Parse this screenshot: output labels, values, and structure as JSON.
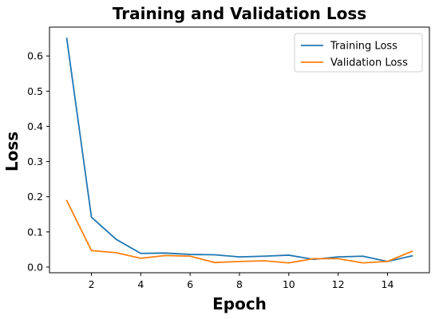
{
  "chart_data": {
    "type": "line",
    "title": "Training and Validation Loss",
    "xlabel": "Epoch",
    "ylabel": "Loss",
    "x": [
      1,
      2,
      3,
      4,
      5,
      6,
      7,
      8,
      9,
      10,
      11,
      12,
      13,
      14,
      15
    ],
    "xlim": [
      0.3,
      15.7
    ],
    "ylim": [
      -0.016,
      0.682
    ],
    "xticks": [
      2,
      4,
      6,
      8,
      10,
      12,
      14
    ],
    "yticks": [
      0.0,
      0.1,
      0.2,
      0.3,
      0.4,
      0.5,
      0.6
    ],
    "ytick_labels": [
      "0.0",
      "0.1",
      "0.2",
      "0.3",
      "0.4",
      "0.5",
      "0.6"
    ],
    "grid": false,
    "legend_position": "top-right",
    "series": [
      {
        "name": "Training Loss",
        "color": "#1f77b4",
        "values": [
          0.65,
          0.142,
          0.079,
          0.039,
          0.04,
          0.036,
          0.035,
          0.029,
          0.031,
          0.034,
          0.022,
          0.029,
          0.031,
          0.016,
          0.032
        ]
      },
      {
        "name": "Validation Loss",
        "color": "#ff7f0e",
        "values": [
          0.189,
          0.047,
          0.041,
          0.025,
          0.033,
          0.031,
          0.013,
          0.016,
          0.018,
          0.012,
          0.024,
          0.024,
          0.012,
          0.016,
          0.045
        ]
      }
    ]
  }
}
